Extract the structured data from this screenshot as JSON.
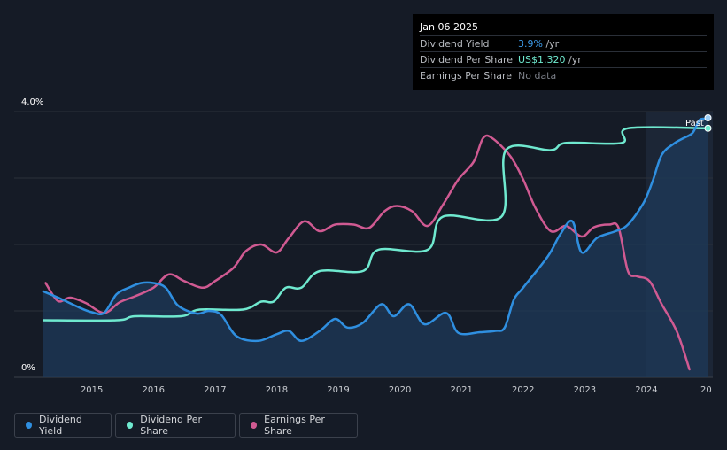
{
  "tooltip": {
    "date": "Jan 06 2025",
    "rows": [
      {
        "label": "Dividend Yield",
        "value": "3.9%",
        "unit": " /yr",
        "color": "#3d9be9"
      },
      {
        "label": "Dividend Per Share",
        "value": "US$1.320",
        "unit": " /yr",
        "color": "#6fe9cf"
      },
      {
        "label": "Earnings Per Share",
        "value": "No data",
        "unit": "",
        "color": "#7c8089"
      }
    ]
  },
  "legend": [
    {
      "label": "Dividend Yield",
      "color": "#2f8fe0"
    },
    {
      "label": "Dividend Per Share",
      "color": "#6fe9cf"
    },
    {
      "label": "Earnings Per Share",
      "color": "#d05a92"
    }
  ],
  "chart_data": {
    "type": "line",
    "y_tick_labels": [
      "4.0%",
      "0%"
    ],
    "ylim_percent": [
      0,
      4.0
    ],
    "x_tick_labels": [
      "2015",
      "2016",
      "2017",
      "2018",
      "2019",
      "2020",
      "2021",
      "2022",
      "2023",
      "2024",
      "20"
    ],
    "xlim": [
      2014.2,
      2025.05
    ],
    "past_label": "Past",
    "forecast_start": 2024.0,
    "grid": true,
    "colors": {
      "yield": "#2f8fe0",
      "dps": "#6fe9cf",
      "eps": "#d05a92",
      "grid": "#2a303b",
      "area": "#1d3a5a"
    },
    "series": [
      {
        "name": "Dividend Yield",
        "unit": "percent",
        "points": [
          [
            2014.2,
            1.3
          ],
          [
            2014.5,
            1.18
          ],
          [
            2014.8,
            1.05
          ],
          [
            2015.0,
            0.98
          ],
          [
            2015.2,
            0.97
          ],
          [
            2015.4,
            1.25
          ],
          [
            2015.6,
            1.35
          ],
          [
            2015.8,
            1.42
          ],
          [
            2016.0,
            1.42
          ],
          [
            2016.2,
            1.35
          ],
          [
            2016.4,
            1.08
          ],
          [
            2016.7,
            0.96
          ],
          [
            2016.9,
            1.0
          ],
          [
            2017.1,
            0.94
          ],
          [
            2017.35,
            0.62
          ],
          [
            2017.7,
            0.55
          ],
          [
            2018.0,
            0.65
          ],
          [
            2018.2,
            0.7
          ],
          [
            2018.4,
            0.55
          ],
          [
            2018.7,
            0.7
          ],
          [
            2018.95,
            0.88
          ],
          [
            2019.15,
            0.75
          ],
          [
            2019.4,
            0.82
          ],
          [
            2019.7,
            1.1
          ],
          [
            2019.9,
            0.92
          ],
          [
            2020.15,
            1.1
          ],
          [
            2020.4,
            0.8
          ],
          [
            2020.75,
            0.97
          ],
          [
            2020.95,
            0.67
          ],
          [
            2021.3,
            0.68
          ],
          [
            2021.55,
            0.7
          ],
          [
            2021.7,
            0.75
          ],
          [
            2021.85,
            1.17
          ],
          [
            2022.0,
            1.35
          ],
          [
            2022.4,
            1.82
          ],
          [
            2022.6,
            2.15
          ],
          [
            2022.8,
            2.35
          ],
          [
            2022.95,
            1.88
          ],
          [
            2023.2,
            2.1
          ],
          [
            2023.5,
            2.2
          ],
          [
            2023.7,
            2.3
          ],
          [
            2023.95,
            2.62
          ],
          [
            2024.1,
            2.95
          ],
          [
            2024.25,
            3.35
          ],
          [
            2024.45,
            3.52
          ],
          [
            2024.6,
            3.6
          ],
          [
            2024.75,
            3.68
          ],
          [
            2024.87,
            3.88
          ],
          [
            2025.0,
            3.88
          ]
        ]
      },
      {
        "name": "Dividend Per Share",
        "unit": "plotted on percent scale",
        "points": [
          [
            2014.2,
            0.86
          ],
          [
            2015.4,
            0.86
          ],
          [
            2015.7,
            0.92
          ],
          [
            2016.45,
            0.92
          ],
          [
            2016.75,
            1.02
          ],
          [
            2017.45,
            1.02
          ],
          [
            2017.75,
            1.14
          ],
          [
            2017.95,
            1.14
          ],
          [
            2018.15,
            1.35
          ],
          [
            2018.4,
            1.35
          ],
          [
            2018.7,
            1.6
          ],
          [
            2019.4,
            1.6
          ],
          [
            2019.65,
            1.92
          ],
          [
            2020.45,
            1.92
          ],
          [
            2020.7,
            2.42
          ],
          [
            2021.65,
            2.42
          ],
          [
            2021.72,
            3.42
          ],
          [
            2022.45,
            3.42
          ],
          [
            2022.7,
            3.53
          ],
          [
            2023.6,
            3.53
          ],
          [
            2023.7,
            3.75
          ],
          [
            2025.0,
            3.75
          ]
        ]
      },
      {
        "name": "Earnings Per Share",
        "unit": "plotted on percent scale",
        "points": [
          [
            2014.25,
            1.42
          ],
          [
            2014.45,
            1.15
          ],
          [
            2014.65,
            1.2
          ],
          [
            2014.9,
            1.12
          ],
          [
            2015.2,
            0.97
          ],
          [
            2015.45,
            1.13
          ],
          [
            2015.7,
            1.22
          ],
          [
            2016.0,
            1.35
          ],
          [
            2016.25,
            1.55
          ],
          [
            2016.5,
            1.45
          ],
          [
            2016.8,
            1.35
          ],
          [
            2017.0,
            1.45
          ],
          [
            2017.3,
            1.65
          ],
          [
            2017.5,
            1.9
          ],
          [
            2017.75,
            2.0
          ],
          [
            2018.0,
            1.88
          ],
          [
            2018.2,
            2.1
          ],
          [
            2018.45,
            2.35
          ],
          [
            2018.7,
            2.2
          ],
          [
            2018.95,
            2.3
          ],
          [
            2019.25,
            2.3
          ],
          [
            2019.5,
            2.25
          ],
          [
            2019.75,
            2.5
          ],
          [
            2019.95,
            2.58
          ],
          [
            2020.2,
            2.5
          ],
          [
            2020.45,
            2.28
          ],
          [
            2020.7,
            2.6
          ],
          [
            2020.95,
            2.98
          ],
          [
            2021.2,
            3.25
          ],
          [
            2021.35,
            3.6
          ],
          [
            2021.5,
            3.6
          ],
          [
            2021.8,
            3.32
          ],
          [
            2022.0,
            2.98
          ],
          [
            2022.2,
            2.55
          ],
          [
            2022.45,
            2.2
          ],
          [
            2022.7,
            2.28
          ],
          [
            2022.95,
            2.12
          ],
          [
            2023.15,
            2.26
          ],
          [
            2023.4,
            2.3
          ],
          [
            2023.55,
            2.25
          ],
          [
            2023.7,
            1.6
          ],
          [
            2023.85,
            1.52
          ],
          [
            2024.05,
            1.45
          ],
          [
            2024.25,
            1.1
          ],
          [
            2024.5,
            0.68
          ],
          [
            2024.7,
            0.12
          ]
        ]
      }
    ]
  }
}
